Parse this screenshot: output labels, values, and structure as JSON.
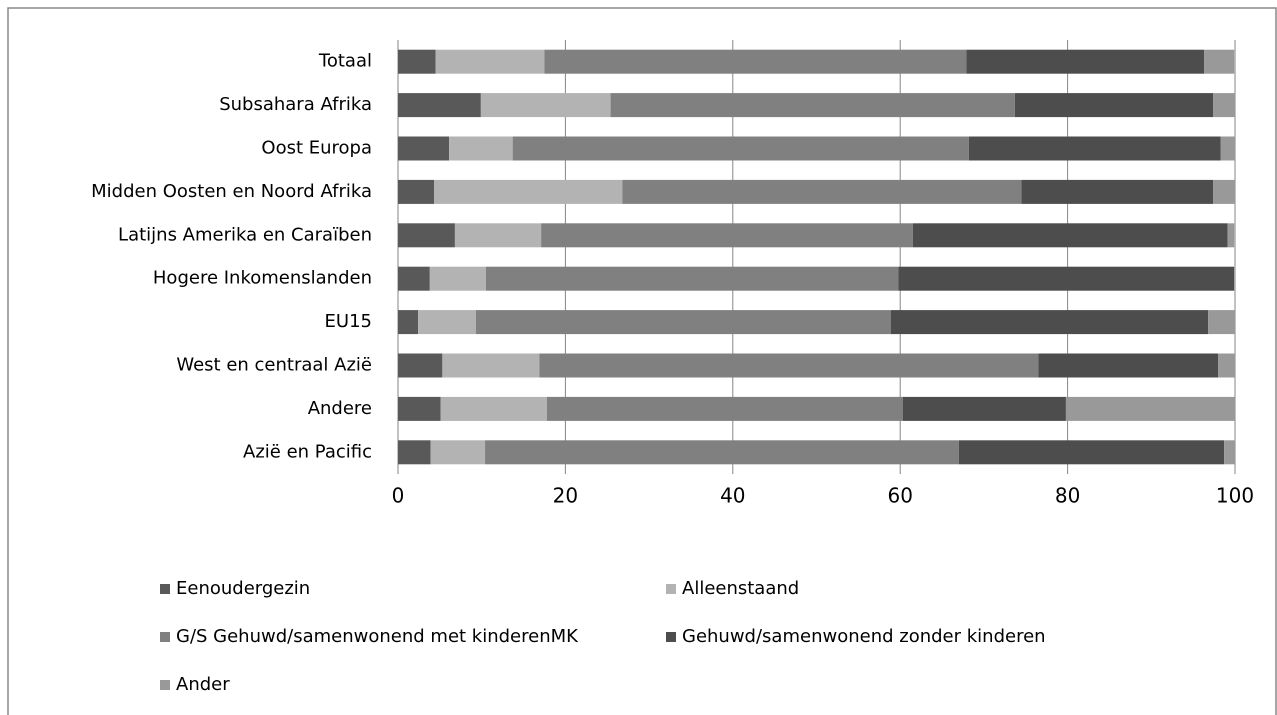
{
  "chart_data": {
    "type": "stacked-bar-horizontal",
    "categories": [
      "Totaal",
      "Subsahara Afrika",
      "Oost Europa",
      "Midden Oosten en Noord Afrika",
      "Latijns Amerika en Caraïben",
      "Hogere Inkomenslanden",
      "EU15",
      "West en centraal Azië",
      "Andere",
      "Azië en Pacific"
    ],
    "series": [
      {
        "name": "Eenoudergezin",
        "color": "#595959",
        "values": [
          4.5,
          9.9,
          6.1,
          4.3,
          6.8,
          3.8,
          2.4,
          5.3,
          5.1,
          3.9
        ]
      },
      {
        "name": "Alleenstaand",
        "color": "#b3b3b3",
        "values": [
          13.0,
          15.5,
          7.6,
          22.5,
          10.3,
          6.7,
          6.9,
          11.6,
          12.7,
          6.5
        ]
      },
      {
        "name": "G/S Gehuwd/samenwonend met kinderenMK",
        "color": "#808080",
        "values": [
          50.4,
          48.3,
          54.5,
          47.7,
          44.4,
          49.3,
          49.6,
          59.6,
          42.5,
          56.6
        ]
      },
      {
        "name": "Gehuwd/samenwonend zonder kinderen",
        "color": "#4d4d4d",
        "values": [
          28.4,
          23.7,
          30.1,
          22.9,
          37.6,
          40.1,
          37.9,
          21.5,
          19.5,
          31.7
        ]
      },
      {
        "name": "Ander",
        "color": "#999999",
        "values": [
          3.6,
          2.6,
          1.7,
          2.6,
          0.8,
          0,
          3.2,
          2.0,
          20.2,
          1.3
        ]
      }
    ],
    "xlim": [
      0,
      100
    ],
    "xticks": [
      0,
      20,
      40,
      60,
      80,
      100
    ],
    "grid": true
  }
}
